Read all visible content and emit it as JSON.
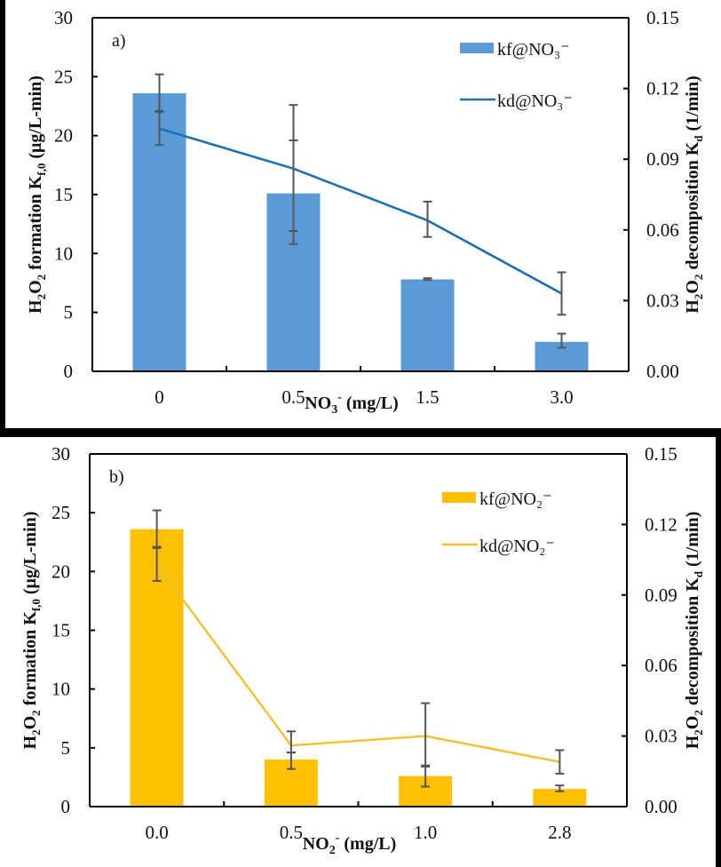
{
  "chart_data": [
    {
      "type": "bar",
      "panel_label": "a)",
      "title": "",
      "xlabel": "NO3- (mg/L)",
      "xlabel_parts": {
        "main": "NO",
        "sub": "3",
        "sup": "-",
        "rest": " (mg/L)"
      },
      "ylabel": "H2O2 formation Kf,0 (μg/L-min)",
      "ylabel_parts": {
        "a": "H",
        "a_sub": "2",
        "b": "O",
        "b_sub": "2",
        "c": " formation K",
        "c_sub": "f,0",
        "d": " (μg/L-min)"
      },
      "y2label": "H2O2 decomposition Kd (1/min)",
      "y2label_parts": {
        "a": "H",
        "a_sub": "2",
        "b": "O",
        "b_sub": "2",
        "c": " decomposition K",
        "c_sub": "d",
        "d": " (1/min)"
      },
      "categories": [
        "0",
        "0.5",
        "1.5",
        "3.0"
      ],
      "ylim": [
        0,
        30
      ],
      "yticks": [
        "0",
        "5",
        "10",
        "15",
        "20",
        "25",
        "30"
      ],
      "y2lim": [
        0,
        0.15
      ],
      "y2ticks": [
        "0.00",
        "0.03",
        "0.06",
        "0.09",
        "0.12",
        "0.15"
      ],
      "grid": false,
      "legend_position": "top-right",
      "series": [
        {
          "name": "kf@NO₃⁻",
          "kind": "bar",
          "axis": "left",
          "color": "#5B9BD5",
          "values": [
            23.6,
            15.1,
            7.8,
            2.5
          ],
          "error_low": [
            22.1,
            11.9,
            7.75,
            2.0
          ],
          "error_high": [
            25.2,
            19.6,
            7.9,
            3.2
          ]
        },
        {
          "name": "kd@NO₃⁻",
          "kind": "line",
          "axis": "right",
          "color": "#1F6FB4",
          "values": [
            0.103,
            0.086,
            0.064,
            0.033
          ],
          "error_low": [
            0.096,
            0.054,
            0.057,
            0.024
          ],
          "error_high": [
            0.11,
            0.113,
            0.072,
            0.042
          ]
        }
      ],
      "error_bar_color": "#555555"
    },
    {
      "type": "bar",
      "panel_label": "b)",
      "title": "",
      "xlabel": "NO2- (mg/L)",
      "xlabel_parts": {
        "main": "NO",
        "sub": "2",
        "sup": "-",
        "rest": " (mg/L)"
      },
      "ylabel": "H2O2 formation Kf,0 (μg/L-min)",
      "ylabel_parts": {
        "a": "H",
        "a_sub": "2",
        "b": "O",
        "b_sub": "2",
        "c": " formation K",
        "c_sub": "f,0",
        "d": " (μg/L-min)"
      },
      "y2label": "H2O2 decomposition Kd (1/min)",
      "y2label_parts": {
        "a": "H",
        "a_sub": "2",
        "b": "O",
        "b_sub": "2",
        "c": " decomposition K",
        "c_sub": "d",
        "d": " (1/min)"
      },
      "categories": [
        "0.0",
        "0.5",
        "1.0",
        "2.8"
      ],
      "ylim": [
        0,
        30
      ],
      "yticks": [
        "0",
        "5",
        "10",
        "15",
        "20",
        "25",
        "30"
      ],
      "y2lim": [
        0,
        0.15
      ],
      "y2ticks": [
        "0.00",
        "0.03",
        "0.06",
        "0.09",
        "0.12",
        "0.15"
      ],
      "grid": false,
      "legend_position": "top-right",
      "series": [
        {
          "name": "kf@NO₂⁻",
          "kind": "bar",
          "axis": "left",
          "color": "#FFC000",
          "values": [
            23.6,
            4.0,
            2.6,
            1.5
          ],
          "error_low": [
            22.1,
            3.2,
            1.7,
            1.3
          ],
          "error_high": [
            25.2,
            4.6,
            3.5,
            1.8
          ]
        },
        {
          "name": "kd@NO₂⁻",
          "kind": "line",
          "axis": "right",
          "color": "#F2C12E",
          "values": [
            0.103,
            0.026,
            0.03,
            0.019
          ],
          "error_low": [
            0.096,
            0.023,
            0.017,
            0.014
          ],
          "error_high": [
            0.11,
            0.032,
            0.044,
            0.024
          ]
        }
      ],
      "error_bar_color": "#555555"
    }
  ]
}
